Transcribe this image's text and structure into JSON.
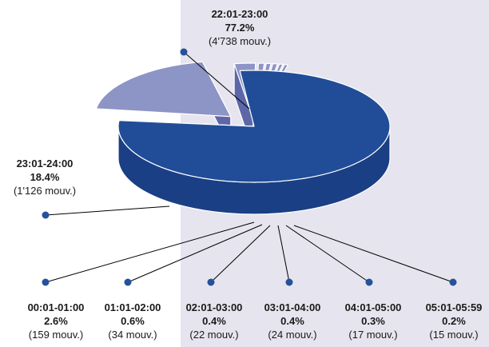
{
  "colors": {
    "panel_bg": "#e6e4ee",
    "top_dark": "#214d98",
    "top_light": "#8d94c6",
    "side_dark": "#1a3f85",
    "side_light": "#5d67a8",
    "edge": "#ffffff",
    "leader": "#000000",
    "dot": "#24529b"
  },
  "chart_data": {
    "type": "pie",
    "title": "",
    "slices": [
      {
        "label": "22:01-23:00",
        "percent": "77.2%",
        "count": "(4'738 mouv.)",
        "value": 4738
      },
      {
        "label": "23:01-24:00",
        "percent": "18.4%",
        "count": "(1'126 mouv.)",
        "value": 1126
      },
      {
        "label": "00:01-01:00",
        "percent": "2.6%",
        "count": "(159 mouv.)",
        "value": 159
      },
      {
        "label": "01:01-02:00",
        "percent": "0.6%",
        "count": "(34 mouv.)",
        "value": 34
      },
      {
        "label": "02:01-03:00",
        "percent": "0.4%",
        "count": "(22 mouv.)",
        "value": 22
      },
      {
        "label": "03:01-04:00",
        "percent": "0.4%",
        "count": "(24 mouv.)",
        "value": 24
      },
      {
        "label": "04:01-05:00",
        "percent": "0.3%",
        "count": "(17 mouv.)",
        "value": 17
      },
      {
        "label": "05:01-05:59",
        "percent": "0.2%",
        "count": "(15 mouv.)",
        "value": 15
      }
    ]
  }
}
